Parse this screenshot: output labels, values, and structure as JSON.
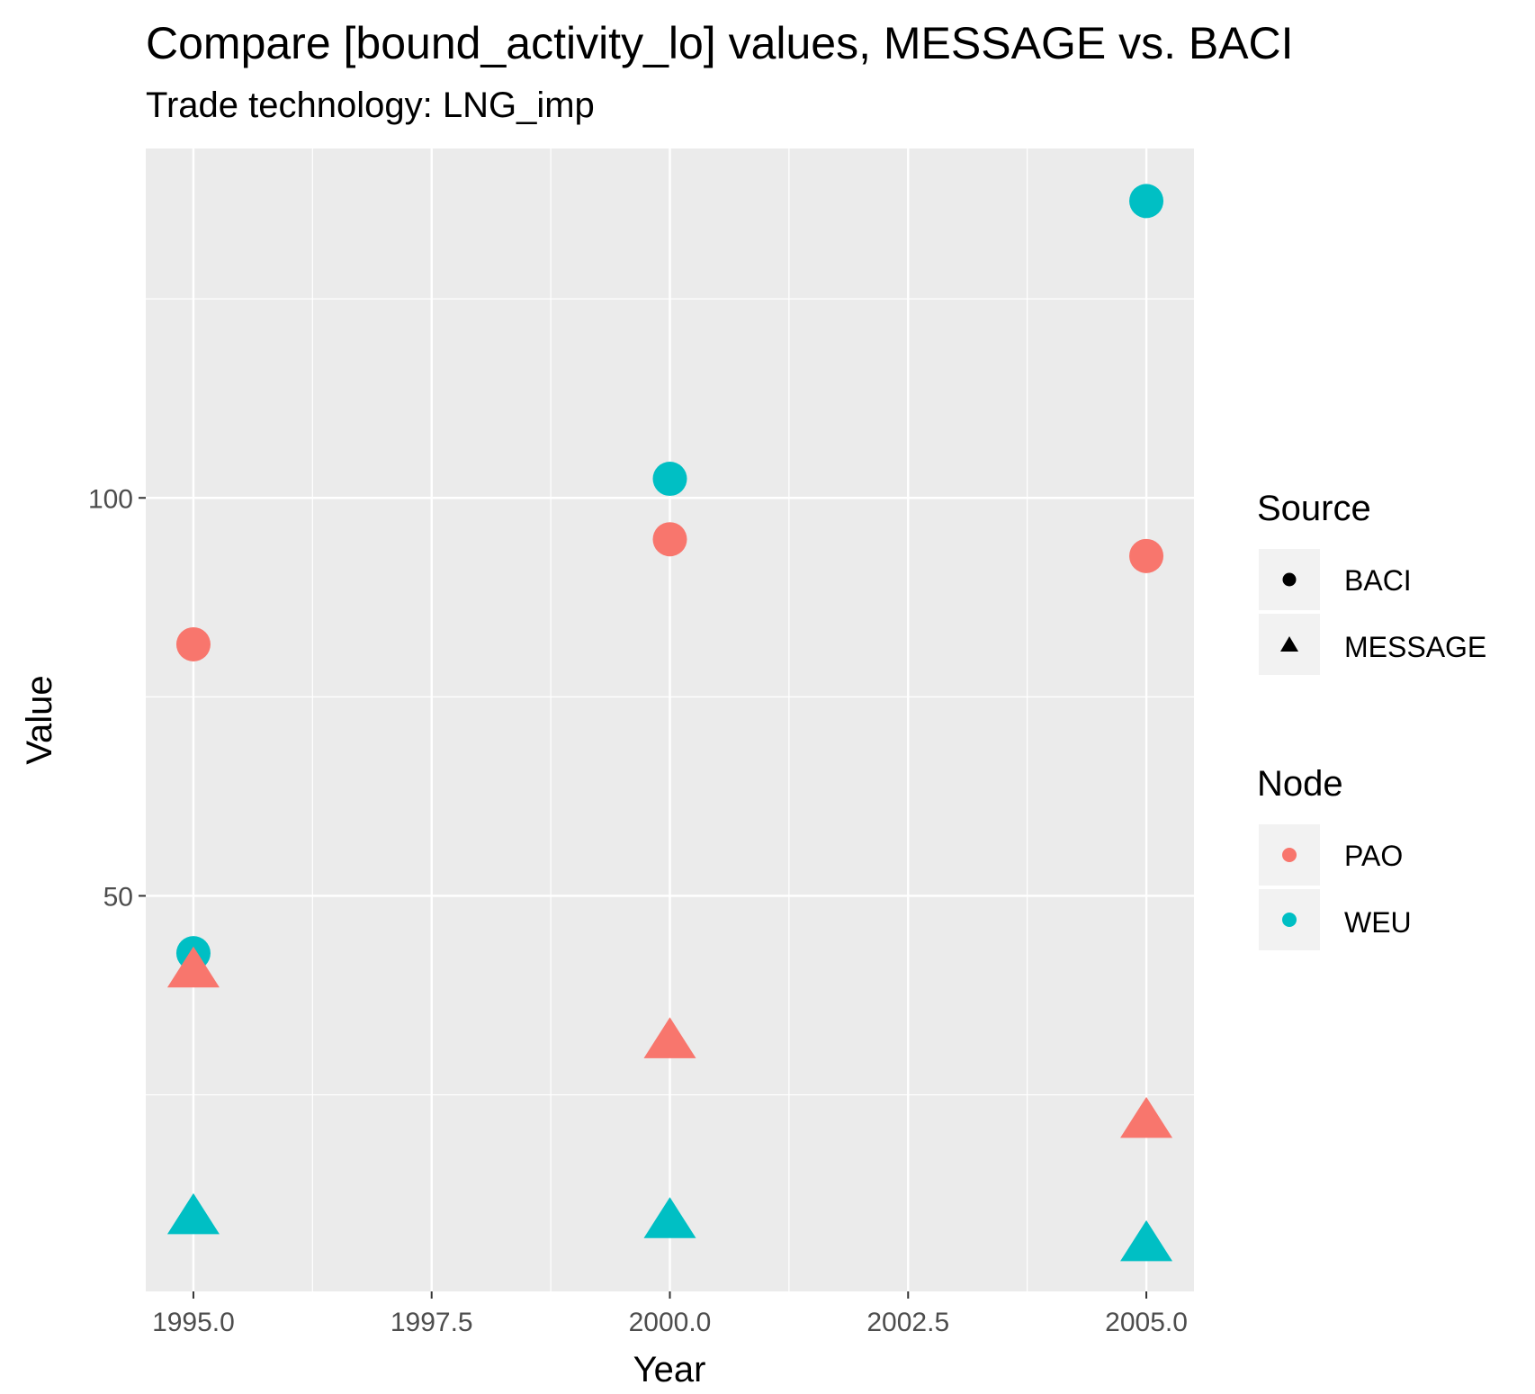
{
  "chart_data": {
    "type": "scatter",
    "title": "Compare [bound_activity_lo] values, MESSAGE vs. BACI",
    "subtitle": "Trade technology: LNG_imp",
    "xlabel": "Year",
    "ylabel": "Value",
    "xlim": [
      1994.5,
      2005.5
    ],
    "ylim": [
      0.3,
      143.9
    ],
    "x_ticks": [
      1995.0,
      1997.5,
      2000.0,
      2002.5,
      2005.0
    ],
    "x_tick_labels": [
      "1995.0",
      "1997.5",
      "2000.0",
      "2002.5",
      "2005.0"
    ],
    "y_ticks": [
      50,
      100
    ],
    "y_tick_labels": [
      "50",
      "100"
    ],
    "grid": true,
    "legend_position": "right",
    "legends": {
      "source": {
        "title": "Source",
        "entries": [
          {
            "label": "BACI",
            "shape": "circle"
          },
          {
            "label": "MESSAGE",
            "shape": "triangle"
          }
        ]
      },
      "node": {
        "title": "Node",
        "entries": [
          {
            "label": "PAO",
            "color": "#F8766D"
          },
          {
            "label": "WEU",
            "color": "#00BFC4"
          }
        ]
      }
    },
    "series": [
      {
        "source": "BACI",
        "node": "PAO",
        "x": [
          1995,
          2000,
          2005
        ],
        "y": [
          81.6,
          94.8,
          92.7
        ]
      },
      {
        "source": "BACI",
        "node": "WEU",
        "x": [
          1995,
          2000,
          2005
        ],
        "y": [
          42.8,
          102.4,
          137.3
        ]
      },
      {
        "source": "MESSAGE",
        "node": "PAO",
        "x": [
          1995,
          2000,
          2005
        ],
        "y": [
          40.7,
          31.8,
          21.8
        ]
      },
      {
        "source": "MESSAGE",
        "node": "WEU",
        "x": [
          1995,
          2000,
          2005
        ],
        "y": [
          9.7,
          9.2,
          6.3
        ]
      }
    ]
  }
}
